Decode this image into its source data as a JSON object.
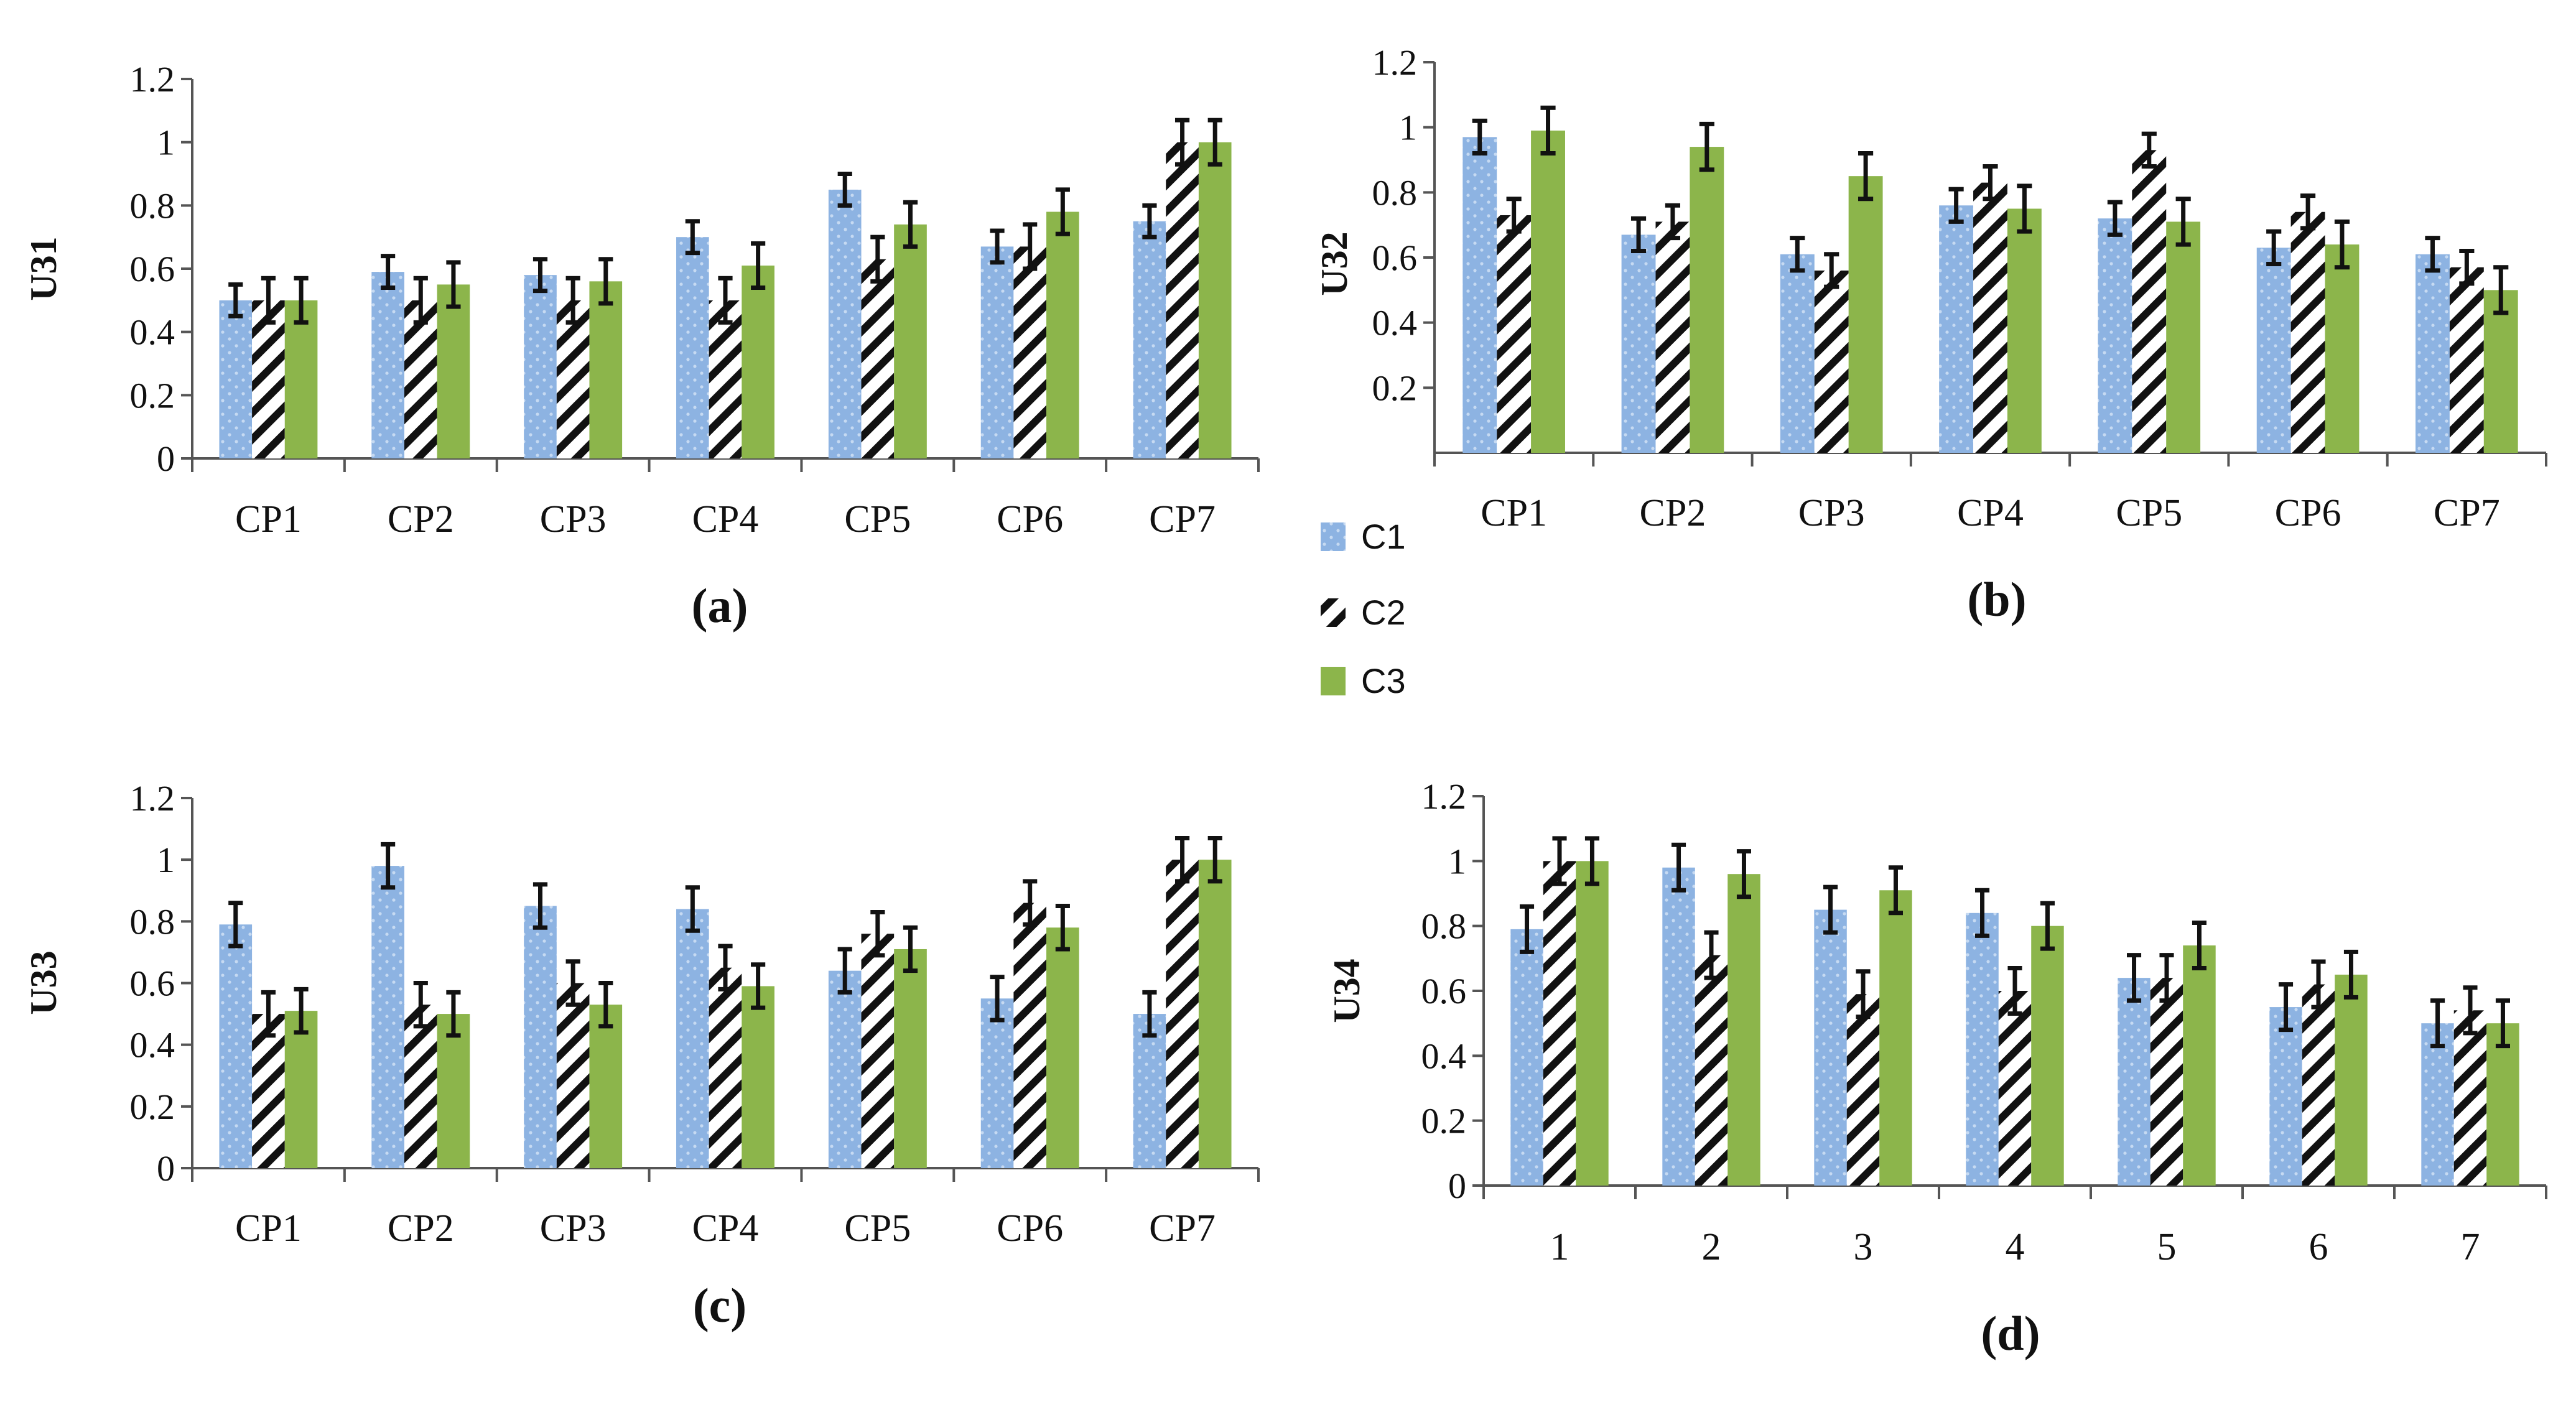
{
  "legend": {
    "entries": [
      {
        "name": "C1",
        "pattern": "dots"
      },
      {
        "name": "C2",
        "pattern": "hatch"
      },
      {
        "name": "C3",
        "pattern": "solid"
      }
    ]
  },
  "colors": {
    "c1": "#8DB3E2",
    "c1_dots": "#C6DAF2",
    "c2_stripe": "#111111",
    "c2_bg": "#ffffff",
    "c3": "#8CB54B",
    "axis": "#555555",
    "error_bar": "#111111"
  },
  "chart_data": [
    {
      "id": "a",
      "type": "bar",
      "caption": "(a)",
      "ylabel": "U31",
      "xlabel": "",
      "categories": [
        "CP1",
        "CP2",
        "CP3",
        "CP4",
        "CP5",
        "CP6",
        "CP7"
      ],
      "ylim": [
        0,
        1.2
      ],
      "yticks": [
        0,
        0.2,
        0.4,
        0.6,
        0.8,
        1,
        1.2
      ],
      "ytick_labels": [
        "0",
        "0.2",
        "0.4",
        "0.6",
        "0.8",
        "1",
        "1.2"
      ],
      "series": [
        {
          "name": "C1",
          "values": [
            0.5,
            0.59,
            0.58,
            0.7,
            0.85,
            0.67,
            0.75
          ],
          "errors": [
            0.05,
            0.05,
            0.05,
            0.05,
            0.05,
            0.05,
            0.05
          ]
        },
        {
          "name": "C2",
          "values": [
            0.5,
            0.5,
            0.5,
            0.5,
            0.63,
            0.67,
            1.0
          ],
          "errors": [
            0.07,
            0.07,
            0.07,
            0.07,
            0.07,
            0.07,
            0.07
          ]
        },
        {
          "name": "C3",
          "values": [
            0.5,
            0.55,
            0.56,
            0.61,
            0.74,
            0.78,
            1.0
          ],
          "errors": [
            0.07,
            0.07,
            0.07,
            0.07,
            0.07,
            0.07,
            0.07
          ]
        }
      ]
    },
    {
      "id": "b",
      "type": "bar",
      "caption": "(b)",
      "ylabel": "U32",
      "xlabel": "",
      "categories": [
        "CP1",
        "CP2",
        "CP3",
        "CP4",
        "CP5",
        "CP6",
        "CP7"
      ],
      "ylim": [
        0,
        1.2
      ],
      "yticks": [
        0.2,
        0.4,
        0.6,
        0.8,
        1,
        1.2
      ],
      "ytick_labels": [
        "0.2",
        "0.4",
        "0.6",
        "0.8",
        "1",
        "1.2"
      ],
      "series": [
        {
          "name": "C1",
          "values": [
            0.97,
            0.67,
            0.61,
            0.76,
            0.72,
            0.63,
            0.61
          ],
          "errors": [
            0.05,
            0.05,
            0.05,
            0.05,
            0.05,
            0.05,
            0.05
          ]
        },
        {
          "name": "C2",
          "values": [
            0.73,
            0.71,
            0.56,
            0.83,
            0.93,
            0.74,
            0.57
          ],
          "errors": [
            0.05,
            0.05,
            0.05,
            0.05,
            0.05,
            0.05,
            0.05
          ]
        },
        {
          "name": "C3",
          "values": [
            0.99,
            0.94,
            0.85,
            0.75,
            0.71,
            0.64,
            0.5
          ],
          "errors": [
            0.07,
            0.07,
            0.07,
            0.07,
            0.07,
            0.07,
            0.07
          ]
        }
      ]
    },
    {
      "id": "c",
      "type": "bar",
      "caption": "(c)",
      "ylabel": "U33",
      "xlabel": "",
      "categories": [
        "CP1",
        "CP2",
        "CP3",
        "CP4",
        "CP5",
        "CP6",
        "CP7"
      ],
      "ylim": [
        0,
        1.2
      ],
      "yticks": [
        0,
        0.2,
        0.4,
        0.6,
        0.8,
        1,
        1.2
      ],
      "ytick_labels": [
        "0",
        "0.2",
        "0.4",
        "0.6",
        "0.8",
        "1",
        "1.2"
      ],
      "series": [
        {
          "name": "C1",
          "values": [
            0.79,
            0.98,
            0.85,
            0.84,
            0.64,
            0.55,
            0.5
          ],
          "errors": [
            0.07,
            0.07,
            0.07,
            0.07,
            0.07,
            0.07,
            0.07
          ]
        },
        {
          "name": "C2",
          "values": [
            0.5,
            0.53,
            0.6,
            0.65,
            0.76,
            0.86,
            1.0
          ],
          "errors": [
            0.07,
            0.07,
            0.07,
            0.07,
            0.07,
            0.07,
            0.07
          ]
        },
        {
          "name": "C3",
          "values": [
            0.51,
            0.5,
            0.53,
            0.59,
            0.71,
            0.78,
            1.0
          ],
          "errors": [
            0.07,
            0.07,
            0.07,
            0.07,
            0.07,
            0.07,
            0.07
          ]
        }
      ]
    },
    {
      "id": "d",
      "type": "bar",
      "caption": "(d)",
      "ylabel": "U34",
      "xlabel": "",
      "categories": [
        "1",
        "2",
        "3",
        "4",
        "5",
        "6",
        "7"
      ],
      "ylim": [
        0,
        1.2
      ],
      "yticks": [
        0,
        0.2,
        0.4,
        0.6,
        0.8,
        1,
        1.2
      ],
      "ytick_labels": [
        "0",
        "0.2",
        "0.4",
        "0.6",
        "0.8",
        "1",
        "1.2"
      ],
      "series": [
        {
          "name": "C1",
          "values": [
            0.79,
            0.98,
            0.85,
            0.84,
            0.64,
            0.55,
            0.5
          ],
          "errors": [
            0.07,
            0.07,
            0.07,
            0.07,
            0.07,
            0.07,
            0.07
          ]
        },
        {
          "name": "C2",
          "values": [
            1.0,
            0.71,
            0.59,
            0.6,
            0.64,
            0.62,
            0.54
          ],
          "errors": [
            0.07,
            0.07,
            0.07,
            0.07,
            0.07,
            0.07,
            0.07
          ]
        },
        {
          "name": "C3",
          "values": [
            1.0,
            0.96,
            0.91,
            0.8,
            0.74,
            0.65,
            0.5
          ],
          "errors": [
            0.07,
            0.07,
            0.07,
            0.07,
            0.07,
            0.07,
            0.07
          ]
        }
      ]
    }
  ]
}
